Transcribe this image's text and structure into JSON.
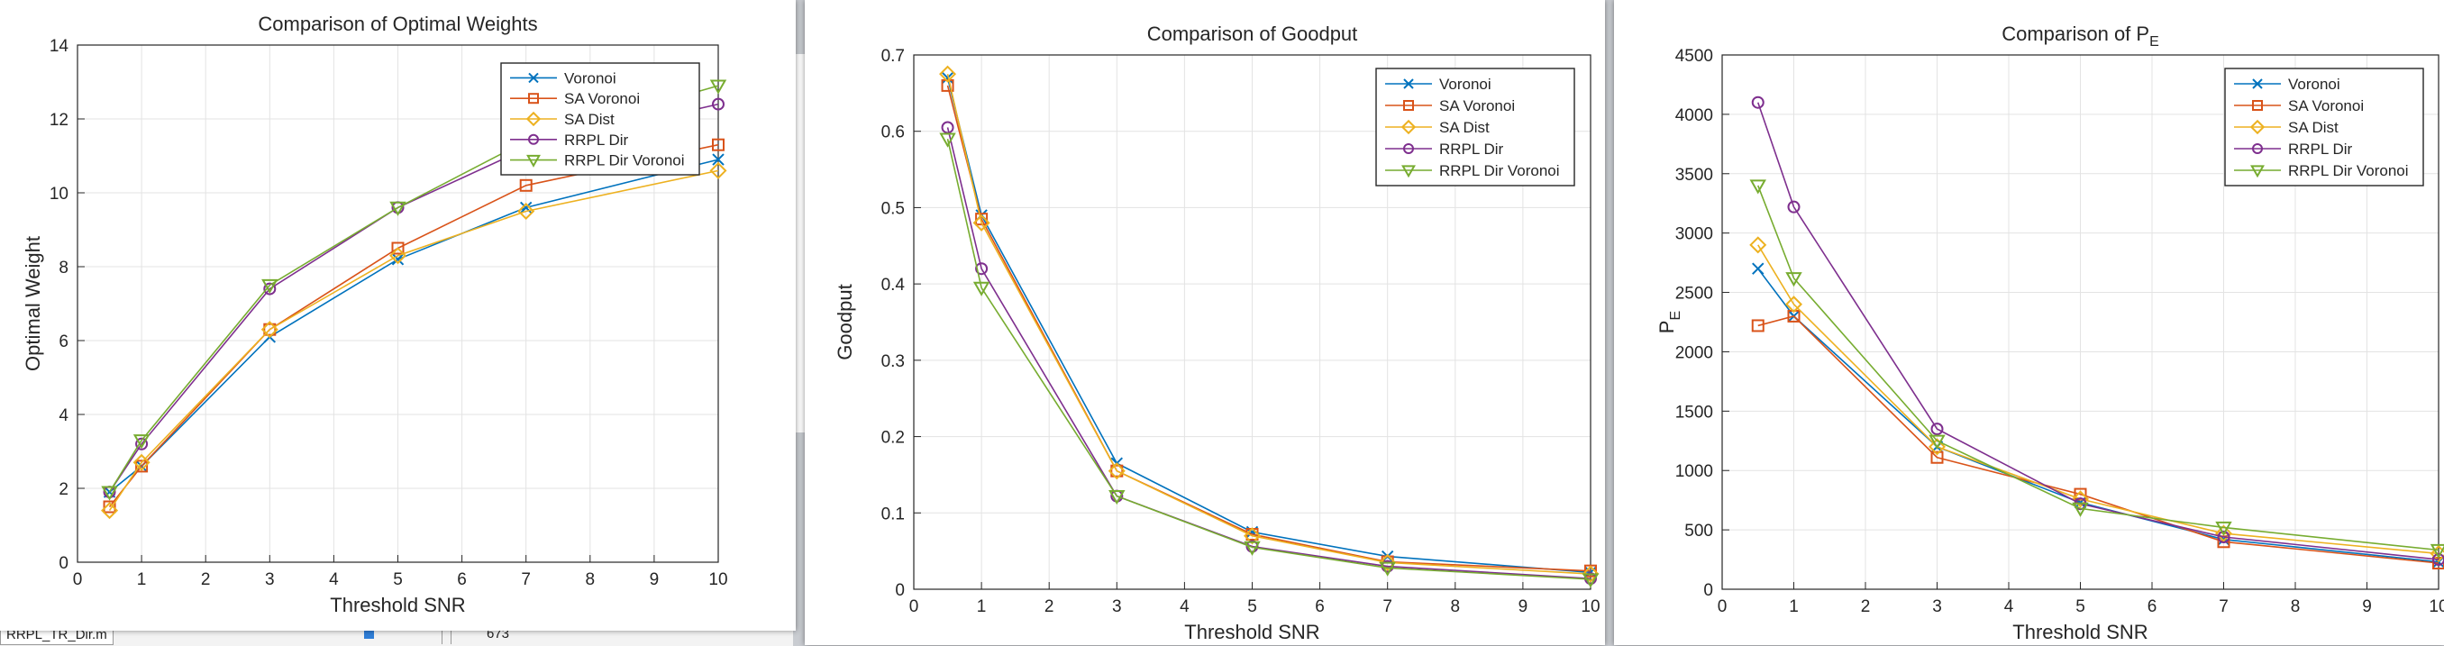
{
  "status_bar": {
    "file_name": "RRPL_TR_Dir.m",
    "line_text": "673"
  },
  "series_style": {
    "Voronoi": {
      "color": "#0072bd",
      "marker": "x"
    },
    "SA Voronoi": {
      "color": "#d95319",
      "marker": "square"
    },
    "SA Dist": {
      "color": "#edb120",
      "marker": "diamond"
    },
    "RRPL Dir": {
      "color": "#7e2f8e",
      "marker": "circle"
    },
    "RRPL Dir Voronoi": {
      "color": "#77ac30",
      "marker": "triangle-down"
    }
  },
  "chart_data": [
    {
      "type": "line",
      "title": "Comparison of Optimal Weights",
      "xlabel": "Threshold SNR",
      "ylabel": "Optimal Weight",
      "xlim": [
        0,
        10
      ],
      "ylim": [
        0,
        14
      ],
      "xticks": [
        "0",
        "1",
        "2",
        "3",
        "4",
        "5",
        "6",
        "7",
        "8",
        "9",
        "10"
      ],
      "yticks": [
        "0",
        "2",
        "4",
        "6",
        "8",
        "10",
        "12",
        "14"
      ],
      "grid": true,
      "legend_position": "top-right",
      "x": [
        0.5,
        1,
        3,
        5,
        7,
        10
      ],
      "series": [
        {
          "name": "Voronoi",
          "values": [
            1.9,
            2.6,
            6.1,
            8.2,
            9.6,
            10.9
          ]
        },
        {
          "name": "SA Voronoi",
          "values": [
            1.5,
            2.6,
            6.3,
            8.5,
            10.2,
            11.3
          ]
        },
        {
          "name": "SA Dist",
          "values": [
            1.4,
            2.7,
            6.3,
            8.3,
            9.5,
            10.6
          ]
        },
        {
          "name": "RRPL Dir",
          "values": [
            1.9,
            3.2,
            7.4,
            9.6,
            11.2,
            12.4
          ]
        },
        {
          "name": "RRPL Dir Voronoi",
          "values": [
            1.9,
            3.3,
            7.5,
            9.6,
            11.4,
            12.9
          ]
        }
      ]
    },
    {
      "type": "line",
      "title": "Comparison of Goodput",
      "xlabel": "Threshold SNR",
      "ylabel": "Goodput",
      "xlim": [
        0,
        10
      ],
      "ylim": [
        0,
        0.7
      ],
      "xticks": [
        "0",
        "1",
        "2",
        "3",
        "4",
        "5",
        "6",
        "7",
        "8",
        "9",
        "10"
      ],
      "yticks": [
        "0",
        "0.1",
        "0.2",
        "0.3",
        "0.4",
        "0.5",
        "0.6",
        "0.7"
      ],
      "grid": true,
      "legend_position": "top-right",
      "x": [
        0.5,
        1,
        3,
        5,
        7,
        10
      ],
      "series": [
        {
          "name": "Voronoi",
          "values": [
            0.67,
            0.49,
            0.165,
            0.075,
            0.043,
            0.022
          ]
        },
        {
          "name": "SA Voronoi",
          "values": [
            0.66,
            0.485,
            0.155,
            0.072,
            0.036,
            0.024
          ]
        },
        {
          "name": "SA Dist",
          "values": [
            0.675,
            0.48,
            0.155,
            0.07,
            0.035,
            0.02
          ]
        },
        {
          "name": "RRPL Dir",
          "values": [
            0.605,
            0.42,
            0.122,
            0.056,
            0.03,
            0.014
          ]
        },
        {
          "name": "RRPL Dir Voronoi",
          "values": [
            0.59,
            0.395,
            0.122,
            0.055,
            0.028,
            0.013
          ]
        }
      ]
    },
    {
      "type": "line",
      "title": "Comparison of P_E",
      "title_main": "Comparison of P",
      "title_sub": "E",
      "xlabel": "Threshold SNR",
      "ylabel_main": "P",
      "ylabel_sub": "E",
      "xlim": [
        0,
        10
      ],
      "ylim": [
        0,
        4500
      ],
      "xticks": [
        "0",
        "1",
        "2",
        "3",
        "4",
        "5",
        "6",
        "7",
        "8",
        "9",
        "10"
      ],
      "yticks": [
        "0",
        "500",
        "1000",
        "1500",
        "2000",
        "2500",
        "3000",
        "3500",
        "4000",
        "4500"
      ],
      "grid": true,
      "legend_position": "top-right",
      "x": [
        0.5,
        1,
        3,
        5,
        7,
        10
      ],
      "series": [
        {
          "name": "Voronoi",
          "values": [
            2700,
            2300,
            1200,
            730,
            420,
            230
          ]
        },
        {
          "name": "SA Voronoi",
          "values": [
            2220,
            2300,
            1110,
            800,
            400,
            220
          ]
        },
        {
          "name": "SA Dist",
          "values": [
            2900,
            2400,
            1200,
            760,
            470,
            300
          ]
        },
        {
          "name": "RRPL Dir",
          "values": [
            4100,
            3220,
            1350,
            720,
            440,
            250
          ]
        },
        {
          "name": "RRPL Dir Voronoi",
          "values": [
            3400,
            2620,
            1250,
            680,
            520,
            330
          ]
        }
      ]
    }
  ]
}
